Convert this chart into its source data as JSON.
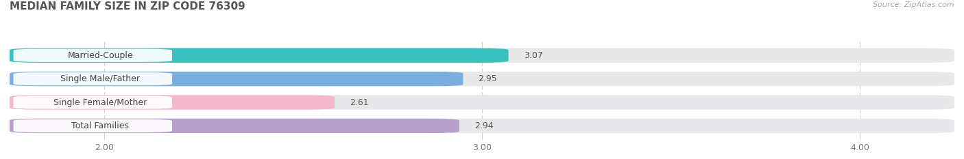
{
  "title": "MEDIAN FAMILY SIZE IN ZIP CODE 76309",
  "source": "Source: ZipAtlas.com",
  "categories": [
    "Married-Couple",
    "Single Male/Father",
    "Single Female/Mother",
    "Total Families"
  ],
  "values": [
    3.07,
    2.95,
    2.61,
    2.94
  ],
  "bar_colors": [
    "#3abfbf",
    "#7aaede",
    "#f4b8cc",
    "#b8a0cc"
  ],
  "xlim_left": 1.75,
  "xlim_right": 4.25,
  "xticks": [
    2.0,
    3.0,
    4.0
  ],
  "xtick_labels": [
    "2.00",
    "3.00",
    "4.00"
  ],
  "bar_height": 0.62,
  "background_color": "#ffffff",
  "bar_bg_color": "#e8e8eb",
  "label_fontsize": 9,
  "value_fontsize": 9,
  "title_fontsize": 11,
  "source_fontsize": 8
}
